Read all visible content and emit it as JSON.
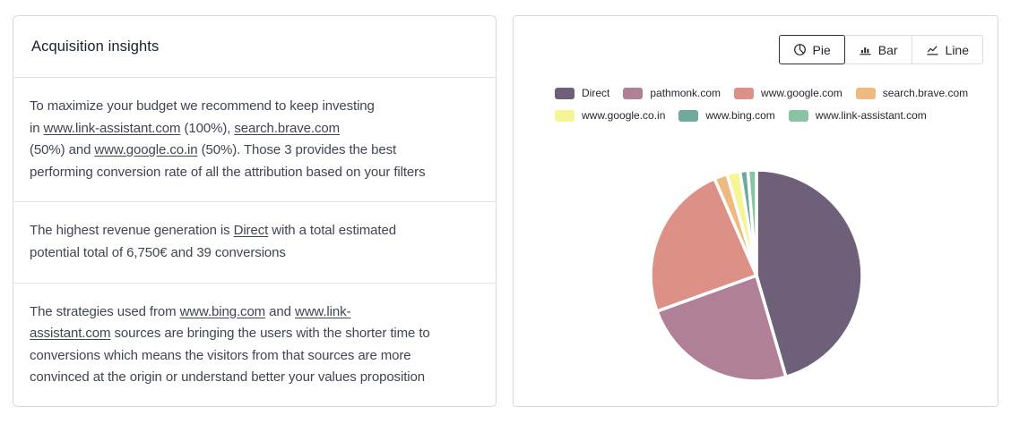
{
  "left_card": {
    "title": "Acquisition insights",
    "sections": [
      {
        "segments": [
          {
            "text": "To maximize your budget we recommend to keep investing"
          },
          {
            "br": true
          },
          {
            "text": "in "
          },
          {
            "text": "www.link-assistant.com",
            "link": true
          },
          {
            "text": " (100%), "
          },
          {
            "text": "search.brave.com",
            "link": true
          },
          {
            "br": true
          },
          {
            "text": "(50%) and "
          },
          {
            "text": "www.google.co.in",
            "link": true
          },
          {
            "text": " (50%). Those 3 provides the best"
          },
          {
            "br": true
          },
          {
            "text": "performing conversion rate of all the attribution based on your filters"
          }
        ]
      },
      {
        "segments": [
          {
            "text": "The highest revenue generation is "
          },
          {
            "text": "Direct",
            "link": true
          },
          {
            "text": " with a total estimated"
          },
          {
            "br": true
          },
          {
            "text": "potential total of 6,750€ and 39 conversions"
          }
        ]
      },
      {
        "segments": [
          {
            "text": "The strategies used from "
          },
          {
            "text": "www.bing.com",
            "link": true
          },
          {
            "text": " and "
          },
          {
            "text": "www.link-",
            "link": true
          },
          {
            "br": true
          },
          {
            "text": "assistant.com",
            "link": true
          },
          {
            "text": " sources are bringing the users with the shorter time to"
          },
          {
            "br": true
          },
          {
            "text": "conversions which means the visitors from that sources are more"
          },
          {
            "br": true
          },
          {
            "text": "convinced at the origin or understand better your values proposition"
          }
        ]
      }
    ]
  },
  "right_card": {
    "controls": [
      {
        "label": "Pie",
        "icon": "pie-chart-icon",
        "active": true
      },
      {
        "label": "Bar",
        "icon": "bar-chart-icon",
        "active": false
      },
      {
        "label": "Line",
        "icon": "line-chart-icon",
        "active": false
      }
    ],
    "active_button_border": "#2a2f3a",
    "button_border": "#d9dbe0"
  },
  "chart_data": {
    "type": "pie",
    "legend_position": "top",
    "start_angle": "12-oclock",
    "direction": "clockwise",
    "slice_border_color": "#ffffff",
    "series": [
      {
        "name": "Direct",
        "value": 45.5,
        "color": "#6d6078"
      },
      {
        "name": "pathmonk.com",
        "value": 24,
        "color": "#b08096"
      },
      {
        "name": "www.google.com",
        "value": 24,
        "color": "#dd9186"
      },
      {
        "name": "search.brave.com",
        "value": 2,
        "color": "#efba80"
      },
      {
        "name": "www.google.co.in",
        "value": 2,
        "color": "#f6f494"
      },
      {
        "name": "www.bing.com",
        "value": 1.2,
        "color": "#6fa99b"
      },
      {
        "name": "www.link-assistant.com",
        "value": 1.3,
        "color": "#89c3a4"
      }
    ]
  }
}
